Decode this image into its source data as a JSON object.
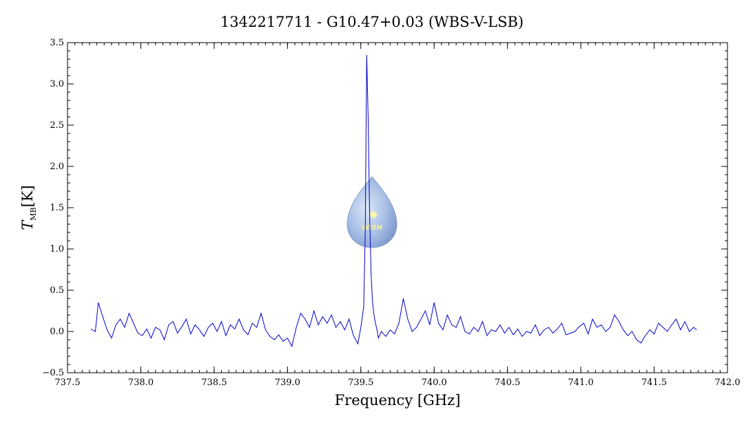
{
  "chart_data": {
    "type": "line",
    "title": "1342217711 - G10.47+0.03 (WBS-V-LSB)",
    "xlabel": "Frequency [GHz]",
    "ylabel_main": "T",
    "ylabel_sub": "MB",
    "ylabel_unit": "[K]",
    "xlim": [
      737.5,
      742.0
    ],
    "ylim": [
      -0.5,
      3.5
    ],
    "xticks": [
      737.5,
      738.0,
      738.5,
      739.0,
      739.5,
      740.0,
      740.5,
      741.0,
      741.5,
      742.0
    ],
    "yticks": [
      -0.5,
      0.0,
      0.5,
      1.0,
      1.5,
      2.0,
      2.5,
      3.0,
      3.5
    ],
    "xtick_labels": [
      "737.5",
      "738.0",
      "738.5",
      "739.0",
      "739.5",
      "740.0",
      "740.5",
      "741.0",
      "741.5",
      "742.0"
    ],
    "ytick_labels": [
      "−0.5",
      "0.0",
      "0.5",
      "1.0",
      "1.5",
      "2.0",
      "2.5",
      "3.0",
      "3.5"
    ],
    "grid": false,
    "line_color": "#0000cc",
    "series": [
      {
        "x": [
          737.66,
          737.69,
          737.71,
          737.74,
          737.77,
          737.8,
          737.83,
          737.86,
          737.89,
          737.92,
          737.95,
          737.98,
          738.01,
          738.04,
          738.07,
          738.1,
          738.13,
          738.16,
          738.19,
          738.22,
          738.25,
          738.28,
          738.31,
          738.34,
          738.37,
          738.4,
          738.43,
          738.46,
          738.49,
          738.52,
          738.55,
          738.58,
          738.61,
          738.64,
          738.67,
          738.7,
          738.73,
          738.76,
          738.79,
          738.82,
          738.85,
          738.88,
          738.91,
          738.94,
          738.97,
          739.0,
          739.03,
          739.06,
          739.09,
          739.12,
          739.15,
          739.18,
          739.21,
          739.24,
          739.27,
          739.3,
          739.33,
          739.36,
          739.39,
          739.42,
          739.45,
          739.48,
          739.5,
          739.52,
          739.53,
          739.54,
          739.55,
          739.56,
          739.57,
          739.58,
          739.59,
          739.6,
          739.61,
          739.62,
          739.64,
          739.67,
          739.7,
          739.73,
          739.76,
          739.79,
          739.82,
          739.85,
          739.88,
          739.91,
          739.94,
          739.97,
          740.0,
          740.03,
          740.06,
          740.09,
          740.12,
          740.15,
          740.18,
          740.21,
          740.24,
          740.27,
          740.3,
          740.33,
          740.36,
          740.39,
          740.42,
          740.45,
          740.48,
          740.51,
          740.54,
          740.57,
          740.6,
          740.63,
          740.66,
          740.69,
          740.72,
          740.75,
          740.78,
          740.81,
          740.84,
          740.87,
          740.9,
          740.93,
          740.96,
          740.99,
          741.02,
          741.05,
          741.08,
          741.11,
          741.14,
          741.17,
          741.2,
          741.23,
          741.26,
          741.29,
          741.32,
          741.35,
          741.38,
          741.41,
          741.44,
          741.47,
          741.5,
          741.53,
          741.56,
          741.59,
          741.62,
          741.65,
          741.68,
          741.71,
          741.74,
          741.77,
          741.79
        ],
        "y": [
          0.03,
          0.0,
          0.35,
          0.18,
          0.02,
          -0.08,
          0.08,
          0.15,
          0.05,
          0.22,
          0.1,
          -0.02,
          -0.05,
          0.03,
          -0.08,
          0.05,
          0.02,
          -0.1,
          0.08,
          0.12,
          -0.02,
          0.06,
          0.15,
          -0.03,
          0.08,
          0.02,
          -0.06,
          0.05,
          0.1,
          0.0,
          0.12,
          -0.05,
          0.08,
          0.03,
          0.15,
          0.02,
          -0.04,
          0.1,
          0.05,
          0.22,
          0.02,
          -0.06,
          -0.1,
          -0.04,
          -0.12,
          -0.08,
          -0.18,
          0.05,
          0.22,
          0.15,
          0.05,
          0.25,
          0.08,
          0.18,
          0.1,
          0.2,
          0.05,
          0.12,
          0.02,
          0.15,
          -0.05,
          -0.15,
          0.05,
          0.3,
          1.2,
          3.35,
          2.6,
          1.4,
          0.7,
          0.35,
          0.2,
          0.1,
          0.02,
          -0.08,
          0.0,
          -0.06,
          0.02,
          -0.03,
          0.1,
          0.4,
          0.15,
          0.0,
          0.05,
          0.15,
          0.25,
          0.08,
          0.35,
          0.1,
          0.02,
          0.2,
          0.08,
          0.05,
          0.18,
          0.0,
          -0.03,
          0.05,
          0.0,
          0.12,
          -0.05,
          0.02,
          0.0,
          0.08,
          -0.02,
          0.05,
          -0.04,
          0.03,
          -0.06,
          0.0,
          -0.02,
          0.08,
          -0.05,
          0.02,
          0.05,
          -0.02,
          0.03,
          0.1,
          -0.04,
          -0.02,
          0.0,
          0.06,
          0.1,
          -0.03,
          0.15,
          0.05,
          0.08,
          0.0,
          0.05,
          0.2,
          0.12,
          0.02,
          -0.05,
          0.0,
          -0.1,
          -0.14,
          -0.05,
          0.02,
          -0.03,
          0.1,
          0.05,
          0.0,
          0.08,
          0.15,
          0.02,
          0.12,
          0.0,
          0.05,
          0.02
        ]
      }
    ]
  },
  "watermark": {
    "text": "WISH"
  }
}
